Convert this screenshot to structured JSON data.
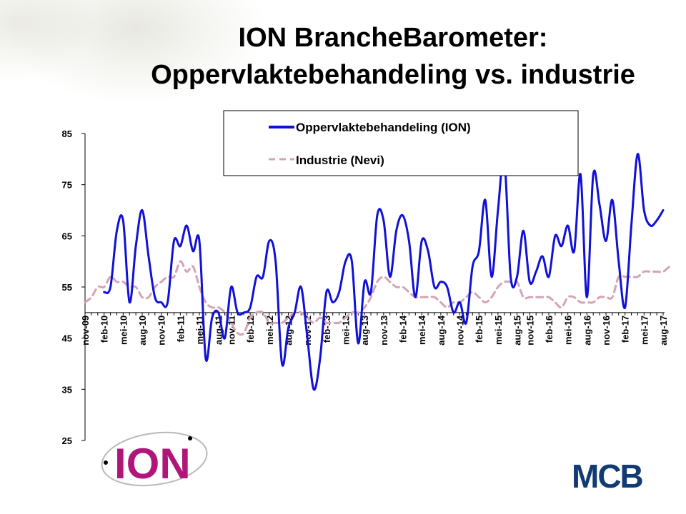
{
  "title": {
    "line1": "ION BrancheBarometer:",
    "line2": "Oppervlaktebehandeling vs. industrie"
  },
  "logos": {
    "ion": "ION",
    "mcb": "MCB"
  },
  "colors": {
    "ion": "#1010d8",
    "nevi": "#d4a3b8",
    "mcb": "#123a73",
    "ion_logo": "#b0157a"
  },
  "chart_data": {
    "type": "line",
    "title": "",
    "xlabel": "",
    "ylabel": "",
    "ylim": [
      25,
      85
    ],
    "yticks": [
      25,
      35,
      45,
      55,
      65,
      75,
      85
    ],
    "x_axis_crosses_at": 50,
    "legend_placement": "top-center",
    "grid": false,
    "tick_labels": [
      "nov-09",
      "feb-10",
      "mei-10",
      "aug-10",
      "nov-10",
      "feb-11",
      "mei-11",
      "aug-11",
      "nov-11",
      "feb-12",
      "mei-12",
      "aug-12",
      "nov-12",
      "feb-13",
      "mei-13",
      "aug-13",
      "nov-13",
      "feb-14",
      "mei-14",
      "aug-14",
      "nov-14",
      "feb-15",
      "mei-15",
      "aug-15",
      "nov-15",
      "feb-16",
      "mei-16",
      "aug-16",
      "nov-16",
      "feb-17",
      "mei-17",
      "aug-17"
    ],
    "series": [
      {
        "name": "Oppervlaktebehandeling (ION)",
        "style": "solid",
        "values": [
          null,
          null,
          null,
          54,
          55,
          66,
          68,
          52,
          63,
          70,
          61,
          53,
          52,
          52,
          64,
          63,
          67,
          62,
          64,
          41,
          49,
          50,
          45,
          55,
          50,
          50,
          51,
          57,
          57,
          64,
          60,
          40,
          47,
          50,
          55,
          45,
          35,
          41,
          54,
          52,
          54,
          60,
          60,
          44,
          56,
          54,
          69,
          68,
          57,
          66,
          69,
          64,
          53,
          64,
          62,
          55,
          56,
          55,
          50,
          52,
          48,
          59,
          62,
          72,
          57,
          70,
          80,
          57,
          57,
          66,
          56,
          58,
          61,
          57,
          65,
          63,
          67,
          62,
          77,
          53,
          77,
          71,
          64,
          72,
          60,
          51,
          67,
          81,
          70,
          67,
          68,
          70
        ]
      },
      {
        "name": "Industrie (Nevi)",
        "style": "dashed",
        "values": [
          52,
          53,
          55,
          55,
          57,
          56,
          56,
          55,
          55,
          53,
          53,
          55,
          56,
          57,
          57,
          60,
          58,
          59,
          55,
          52,
          51,
          51,
          50,
          48,
          46,
          46,
          49,
          50,
          50,
          48,
          48,
          48,
          49,
          50,
          50,
          49,
          48,
          49,
          48,
          48,
          48,
          49,
          50,
          50,
          51,
          53,
          56,
          57,
          56,
          55,
          55,
          54,
          53,
          53,
          53,
          53,
          52,
          51,
          52,
          52,
          53,
          54,
          53,
          52,
          53,
          55,
          56,
          56,
          56,
          53,
          53,
          53,
          53,
          53,
          52,
          51,
          53,
          53,
          52,
          52,
          52,
          53,
          53,
          53,
          57,
          57,
          57,
          57,
          58,
          58,
          58,
          58,
          59
        ]
      }
    ]
  }
}
